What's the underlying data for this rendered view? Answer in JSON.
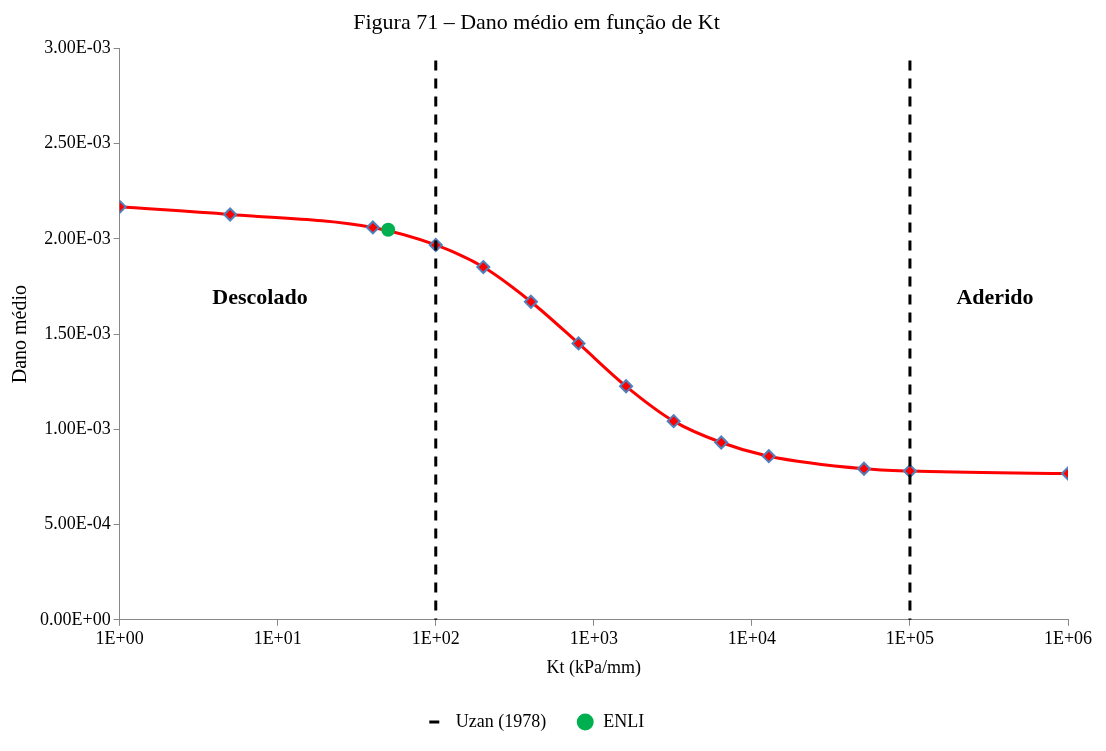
{
  "chart_data": {
    "type": "line",
    "title": "Figura 71 – Dano médio em função de Kt",
    "xlabel": "Kt (kPa/mm)",
    "ylabel": "Dano médio",
    "log": "x",
    "grid": false,
    "legend": "bottom",
    "marker": "diamond",
    "line_style": "solid",
    "xlim": [
      1,
      1000000
    ],
    "xticks": [
      {
        "value": 1,
        "label": "1E+00"
      },
      {
        "value": 10,
        "label": "1E+01"
      },
      {
        "value": 100,
        "label": "1E+02"
      },
      {
        "value": 1000,
        "label": "1E+03"
      },
      {
        "value": 10000,
        "label": "1E+04"
      },
      {
        "value": 100000,
        "label": "1E+05"
      },
      {
        "value": 1000000,
        "label": "1E+06"
      }
    ],
    "ylim": [
      0,
      0.003
    ],
    "yticks": [
      {
        "value": 0,
        "label": "0.00E+00"
      },
      {
        "value": 0.0005,
        "label": "5.00E-04"
      },
      {
        "value": 0.001,
        "label": "1.00E-03"
      },
      {
        "value": 0.0015,
        "label": "1.50E-03"
      },
      {
        "value": 0.002,
        "label": "2.00E-03"
      },
      {
        "value": 0.0025,
        "label": "2.50E-03"
      },
      {
        "value": 0.003,
        "label": "3.00E-03"
      }
    ],
    "series": [
      {
        "color": "#ff0000",
        "x": [
          1,
          5,
          40,
          100,
          200,
          400,
          800,
          1600,
          3200,
          6400,
          12800,
          51200,
          100000,
          1000000
        ],
        "values": [
          0.002168,
          0.002128,
          0.00206,
          0.001968,
          0.001852,
          0.00167,
          0.001451,
          0.001226,
          0.001043,
          0.000931,
          0.000859,
          0.000793,
          0.000781,
          0.000768
        ]
      },
      {
        "name": "ENLI",
        "type": "scatter",
        "marker": "circle",
        "color": "#00b050",
        "x": [
          50
        ],
        "values": [
          0.002048
        ]
      }
    ],
    "ref_lines": [
      {
        "axis": "x",
        "value": 100,
        "label": "Uzan (1978)",
        "color": "#000000",
        "line_style": "dashed"
      },
      {
        "axis": "x",
        "value": 100000,
        "color": "#000000",
        "line_style": "dashed"
      }
    ],
    "annotations": [
      "Descolado",
      "Aderido"
    ]
  }
}
